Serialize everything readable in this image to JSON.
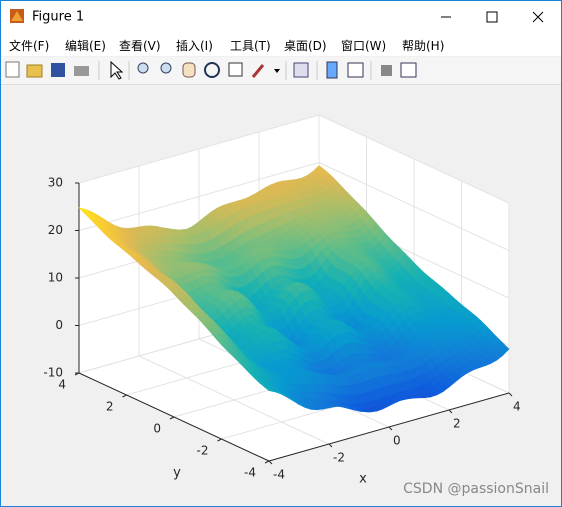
{
  "window": {
    "title": "Figure 1",
    "menu": [
      "文件(F)",
      "编辑(E)",
      "查看(V)",
      "插入(I)",
      "工具(T)",
      "桌面(D)",
      "窗口(W)",
      "帮助(H)"
    ]
  },
  "watermark": "CSDN @passionSnail",
  "chart_data": {
    "type": "surface",
    "xlabel": "x",
    "ylabel": "y",
    "xlim": [
      -4,
      4
    ],
    "xticks": [
      -4,
      -2,
      0,
      2,
      4
    ],
    "ylim": [
      -4,
      4
    ],
    "yticks": [
      -4,
      -2,
      0,
      2,
      4
    ],
    "zlim": [
      -10,
      30
    ],
    "zticks": [
      -10,
      0,
      10,
      20,
      30
    ],
    "grid": true,
    "colormap": "parula"
  }
}
